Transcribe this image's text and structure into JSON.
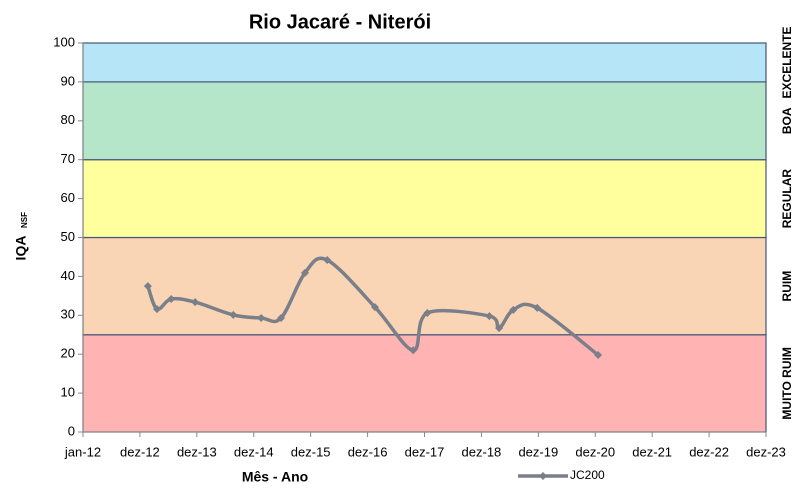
{
  "chart_data": {
    "type": "line",
    "title": "Rio Jacaré - Niterói",
    "x_label": "Mês - Ano",
    "y_label": "IQA",
    "y_label_subscript": "NSF",
    "xlim": [
      2012,
      2024
    ],
    "xticks": [
      {
        "value": 2012,
        "label": "jan-12"
      },
      {
        "value": 2013,
        "label": "dez-12"
      },
      {
        "value": 2014,
        "label": "dez-13"
      },
      {
        "value": 2015,
        "label": "dez-14"
      },
      {
        "value": 2016,
        "label": "dez-15"
      },
      {
        "value": 2017,
        "label": "dez-16"
      },
      {
        "value": 2018,
        "label": "dez-17"
      },
      {
        "value": 2019,
        "label": "dez-18"
      },
      {
        "value": 2020,
        "label": "dez-19"
      },
      {
        "value": 2021,
        "label": "dez-20"
      },
      {
        "value": 2022,
        "label": "dez-21"
      },
      {
        "value": 2023,
        "label": "dez-22"
      },
      {
        "value": 2024,
        "label": "dez-23"
      }
    ],
    "ylim": [
      0,
      100
    ],
    "yticks": [
      0,
      10,
      20,
      30,
      40,
      50,
      60,
      70,
      80,
      90,
      100
    ],
    "bands": [
      {
        "name": "MUITO RUIM",
        "lower": 0,
        "upper": 25,
        "color": "#ffb3b3"
      },
      {
        "name": "RUIM",
        "lower": 25,
        "upper": 50,
        "color": "#f9d5b6"
      },
      {
        "name": "REGULAR",
        "lower": 50,
        "upper": 70,
        "color": "#ffff9e"
      },
      {
        "name": "BOA",
        "lower": 70,
        "upper": 90,
        "color": "#b5e6c9"
      },
      {
        "name": "EXCELENTE",
        "lower": 90,
        "upper": 100,
        "color": "#b6e5f8"
      }
    ],
    "x": [
      2013.14,
      2013.3,
      2013.55,
      2013.97,
      2014.64,
      2015.13,
      2015.48,
      2015.9,
      2016.29,
      2017.13,
      2017.8,
      2018.05,
      2019.14,
      2019.31,
      2019.56,
      2019.98,
      2021.05
    ],
    "series": [
      {
        "name": "JC200",
        "color": "#7b7f8a",
        "values": [
          37.5,
          31.6,
          34.2,
          33.4,
          30.1,
          29.3,
          29.3,
          40.9,
          44.2,
          32.1,
          21,
          30.6,
          29.8,
          26.7,
          31.4,
          31.9,
          19.8
        ]
      }
    ]
  }
}
